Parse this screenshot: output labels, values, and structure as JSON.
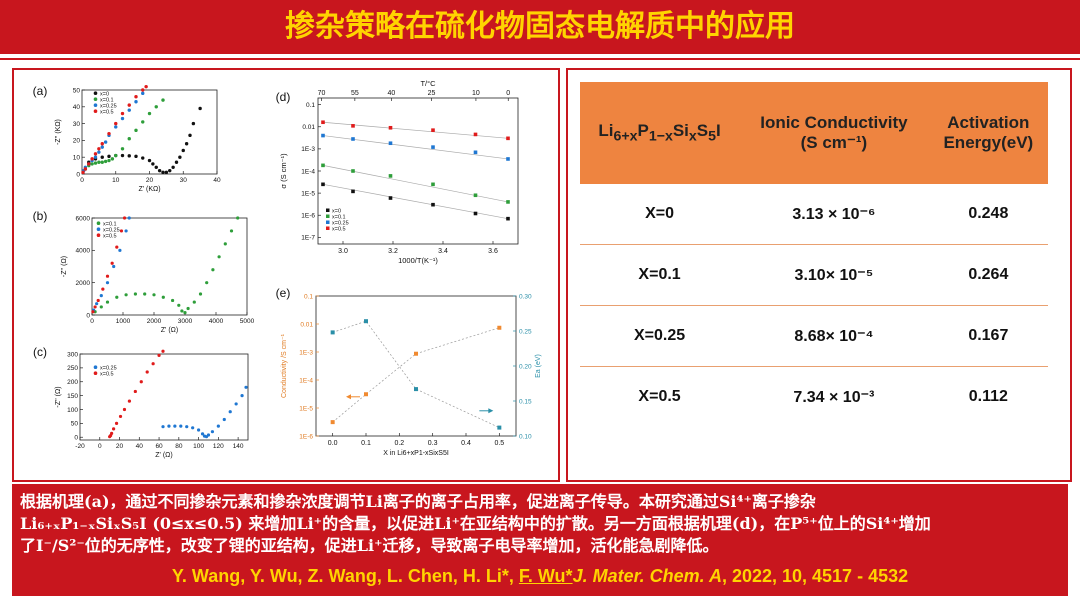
{
  "header": {
    "title": "掺杂策略在硫化物固态电解质中的应用"
  },
  "figure": {
    "panel_labels": [
      "(a)",
      "(b)",
      "(c)",
      "(d)",
      "(e)"
    ],
    "panel_a": {
      "ylabel": "-Z'' (KΩ)",
      "xlabel": "Z' (KΩ)",
      "yticks": [
        "0",
        "10",
        "20",
        "30",
        "40",
        "50"
      ],
      "xticks": [
        "0",
        "10",
        "20",
        "30",
        "40"
      ],
      "legend": [
        "x=0",
        "x=0.1",
        "x=0.25",
        "x=0.5"
      ]
    },
    "panel_b": {
      "ylabel": "-Z'' (Ω)",
      "xlabel": "Z' (Ω)",
      "yticks": [
        "0",
        "2000",
        "4000",
        "6000"
      ],
      "xticks": [
        "0",
        "1000",
        "2000",
        "3000",
        "4000",
        "5000"
      ],
      "legend": [
        "x=0.1",
        "x=0.25",
        "x=0.5"
      ]
    },
    "panel_c": {
      "ylabel": "-Z'' (Ω)",
      "xlabel": "Z' (Ω)",
      "yticks": [
        "0",
        "50",
        "100",
        "150",
        "200",
        "250",
        "300"
      ],
      "xticks": [
        "-20",
        "0",
        "20",
        "40",
        "60",
        "80",
        "100",
        "120",
        "140"
      ],
      "legend": [
        "x=0.25",
        "x=0.5"
      ]
    },
    "panel_d": {
      "top_axis_label": "T/°C",
      "top_ticks": [
        "70",
        "55",
        "40",
        "25",
        "10",
        "0"
      ],
      "ylabel": "σ (S cm⁻¹)",
      "xlabel": "1000/T(K⁻¹)",
      "yticks": [
        "0.1",
        "0.01",
        "1E-3",
        "1E-4",
        "1E-5",
        "1E-6",
        "1E-7"
      ],
      "xticks": [
        "3.0",
        "3.2",
        "3.4",
        "3.6"
      ],
      "legend": [
        "x=0",
        "x=0.1",
        "x=0.25",
        "x=0.5"
      ]
    },
    "panel_e": {
      "ylabel_left": "Conductivity /S cm⁻¹",
      "ylabel_right": "Ea (eV)",
      "xlabel": "X in Li6+xP1-xSixS5I",
      "yticks_left": [
        "0.1",
        "0.01",
        "1E-3",
        "1E-4",
        "1E-5",
        "1E-6"
      ],
      "yticks_right": [
        "0.30",
        "0.25",
        "0.20",
        "0.15",
        "0.10"
      ],
      "xticks": [
        "0.0",
        "0.1",
        "0.2",
        "0.3",
        "0.4",
        "0.5"
      ]
    }
  },
  "chart_data": [
    {
      "type": "scatter",
      "title": "(a)",
      "xlabel": "Z' (KΩ)",
      "ylabel": "-Z'' (KΩ)",
      "xlim": [
        0,
        40
      ],
      "ylim": [
        0,
        50
      ],
      "series": [
        {
          "name": "x=0",
          "color": "#111111",
          "x": [
            2,
            4,
            6,
            8,
            10,
            12,
            14,
            16,
            18,
            20,
            21,
            22,
            23,
            24,
            25,
            26,
            27,
            28,
            29,
            30,
            31,
            32,
            33,
            35
          ],
          "y": [
            7,
            9,
            10,
            10.5,
            11,
            11,
            10.8,
            10.5,
            9.5,
            8,
            6,
            4,
            2,
            1,
            1,
            2,
            4,
            7,
            10,
            14,
            18,
            23,
            30,
            39
          ]
        },
        {
          "name": "x=0.1",
          "color": "#2e9e3a",
          "x": [
            1,
            2,
            3,
            4,
            5,
            6,
            7,
            8,
            9,
            10,
            12,
            14,
            16,
            18,
            20,
            22,
            24
          ],
          "y": [
            3,
            5,
            6,
            6.5,
            7,
            7,
            7.5,
            8,
            9,
            11,
            15,
            21,
            26,
            31,
            36,
            40,
            44
          ]
        },
        {
          "name": "x=0.25",
          "color": "#1f77d2",
          "x": [
            0.5,
            1,
            2,
            3,
            4,
            5,
            6,
            7,
            8,
            10,
            12,
            14,
            16,
            18
          ],
          "y": [
            2,
            4,
            6,
            8,
            10,
            13,
            16,
            19,
            23,
            28,
            33,
            38,
            43,
            48
          ]
        },
        {
          "name": "x=0.5",
          "color": "#e01b1b",
          "x": [
            0.3,
            1,
            2,
            3,
            4,
            5,
            6,
            8,
            10,
            12,
            14,
            16,
            18,
            19
          ],
          "y": [
            1,
            3,
            6,
            9,
            12,
            15,
            18,
            24,
            30,
            36,
            41,
            46,
            50,
            52
          ]
        }
      ]
    },
    {
      "type": "scatter",
      "title": "(b)",
      "xlabel": "Z' (Ω)",
      "ylabel": "-Z'' (Ω)",
      "xlim": [
        0,
        5000
      ],
      "ylim": [
        0,
        6000
      ],
      "series": [
        {
          "name": "x=0.1",
          "color": "#2e9e3a",
          "x": [
            100,
            300,
            500,
            800,
            1100,
            1400,
            1700,
            2000,
            2300,
            2600,
            2800,
            2900,
            3000,
            3100,
            3300,
            3500,
            3700,
            3900,
            4100,
            4300,
            4500,
            4700
          ],
          "y": [
            200,
            500,
            800,
            1100,
            1250,
            1300,
            1300,
            1250,
            1100,
            900,
            600,
            250,
            150,
            400,
            800,
            1300,
            2000,
            2800,
            3600,
            4400,
            5200,
            6000
          ]
        },
        {
          "name": "x=0.25",
          "color": "#1f77d2",
          "x": [
            50,
            150,
            300,
            500,
            700,
            900,
            1100,
            1200
          ],
          "y": [
            300,
            700,
            1200,
            2000,
            3000,
            4000,
            5200,
            6000
          ]
        },
        {
          "name": "x=0.5",
          "color": "#e01b1b",
          "x": [
            30,
            100,
            200,
            350,
            500,
            650,
            800,
            950,
            1050
          ],
          "y": [
            200,
            500,
            900,
            1600,
            2400,
            3200,
            4200,
            5200,
            6000
          ]
        }
      ]
    },
    {
      "type": "scatter",
      "title": "(c)",
      "xlabel": "Z' (Ω)",
      "ylabel": "-Z'' (Ω)",
      "xlim": [
        -20,
        150
      ],
      "ylim": [
        0,
        300
      ],
      "series": [
        {
          "name": "x=0.25",
          "color": "#1f77d2",
          "x": [
            64,
            70,
            76,
            82,
            88,
            94,
            100,
            104,
            106,
            108,
            110,
            114,
            120,
            126,
            132,
            138,
            144,
            148
          ],
          "y": [
            38,
            40,
            40,
            40,
            38,
            34,
            26,
            12,
            4,
            2,
            8,
            20,
            40,
            64,
            92,
            120,
            150,
            180
          ]
        },
        {
          "name": "x=0.5",
          "color": "#e01b1b",
          "x": [
            10,
            11,
            12,
            14,
            17,
            21,
            25,
            30,
            36,
            42,
            48,
            54,
            60,
            64
          ],
          "y": [
            2,
            6,
            14,
            30,
            50,
            75,
            100,
            130,
            165,
            200,
            235,
            265,
            295,
            310
          ]
        }
      ]
    },
    {
      "type": "scatter",
      "title": "(d)",
      "xlabel": "1000/T(K⁻¹)",
      "ylabel": "σ (S cm⁻¹)",
      "xlim": [
        2.9,
        3.7
      ],
      "ylim_log10": [
        -7,
        -1
      ],
      "series": [
        {
          "name": "x=0",
          "color": "#111111",
          "x": [
            2.92,
            3.04,
            3.19,
            3.36,
            3.53,
            3.66
          ],
          "y": [
            2.5e-05,
            1.2e-05,
            6e-06,
            3e-06,
            1.2e-06,
            7e-07
          ]
        },
        {
          "name": "x=0.1",
          "color": "#2e9e3a",
          "x": [
            2.92,
            3.04,
            3.19,
            3.36,
            3.53,
            3.66
          ],
          "y": [
            0.00018,
            0.0001,
            6e-05,
            2.5e-05,
            8e-06,
            4e-06
          ]
        },
        {
          "name": "x=0.25",
          "color": "#1f77d2",
          "x": [
            2.92,
            3.04,
            3.19,
            3.36,
            3.53,
            3.66
          ],
          "y": [
            0.004,
            0.0028,
            0.0018,
            0.0012,
            0.0007,
            0.00035
          ]
        },
        {
          "name": "x=0.5",
          "color": "#e01b1b",
          "x": [
            2.92,
            3.04,
            3.19,
            3.36,
            3.53,
            3.66
          ],
          "y": [
            0.016,
            0.011,
            0.009,
            0.007,
            0.0045,
            0.003
          ]
        }
      ]
    },
    {
      "type": "line",
      "title": "(e)",
      "xlabel": "X in Li6+xP1-xSixS5I",
      "ylabel": "Conductivity /S cm⁻¹",
      "ylabel_right": "Ea (eV)",
      "xlim": [
        -0.05,
        0.55
      ],
      "ylim_log10": [
        -6,
        -1
      ],
      "ylim_right": [
        0.1,
        0.3
      ],
      "x": [
        0.0,
        0.1,
        0.25,
        0.5
      ],
      "series": [
        {
          "name": "Conductivity",
          "color": "#f08a30",
          "values": [
            3.13e-06,
            3.1e-05,
            0.000868,
            0.00734
          ]
        },
        {
          "name": "Ea",
          "color": "#2a8fa8",
          "values": [
            0.248,
            0.264,
            0.167,
            0.112
          ]
        }
      ]
    },
    {
      "type": "table",
      "columns": [
        "Li6+xP1-xSixS5I",
        "Ionic Conductivity (S cm⁻¹)",
        "Activation Energy(eV)"
      ],
      "rows": [
        [
          "X=0",
          "3.13 × 10⁻⁶",
          "0.248"
        ],
        [
          "X=0.1",
          "3.10× 10⁻⁵",
          "0.264"
        ],
        [
          "X=0.25",
          "8.68× 10⁻⁴",
          "0.167"
        ],
        [
          "X=0.5",
          "7.34 × 10⁻³",
          "0.112"
        ]
      ]
    }
  ],
  "table": {
    "col1": "Li6+xP1−xSixS5I",
    "col2_line1": "Ionic Conductivity",
    "col2_line2": "(S cm⁻¹)",
    "col3_line1": "Activation",
    "col3_line2": "Energy(eV)",
    "rows": [
      {
        "x": "X=0",
        "sigma": "3.13 × 10⁻⁶",
        "ea": "0.248"
      },
      {
        "x": "X=0.1",
        "sigma": "3.10× 10⁻⁵",
        "ea": "0.264"
      },
      {
        "x": "X=0.25",
        "sigma": "8.68× 10⁻⁴",
        "ea": "0.167"
      },
      {
        "x": "X=0.5",
        "sigma": "7.34 × 10⁻³",
        "ea": "0.112"
      }
    ]
  },
  "summary": {
    "line1": "根据机理(a)，通过不同掺杂元素和掺杂浓度调节Li离子的离子占用率，促进离子传导。本研究通过Si⁴⁺离子掺杂",
    "line2": "Li₆₊ₓP₁₋ₓSiₓS₅I (0≤x≤0.5) 来增加Li⁺的含量，以促进Li⁺在亚结构中的扩散。另一方面根据机理(d)，在P⁵⁺位上的Si⁴⁺增加",
    "line3": "了I⁻/S²⁻位的无序性，改变了锂的亚结构，促进Li⁺迁移，导致离子电导率增加，活化能急剧降低。"
  },
  "citation": {
    "authors": "Y. Wang, Y. Wu, Z. Wang, L. Chen, H. Li*, ",
    "corresponding": "F. Wu*",
    "journal": "J. Mater. Chem. A",
    "rest": ", 2022, 10, 4517 - 4532"
  }
}
